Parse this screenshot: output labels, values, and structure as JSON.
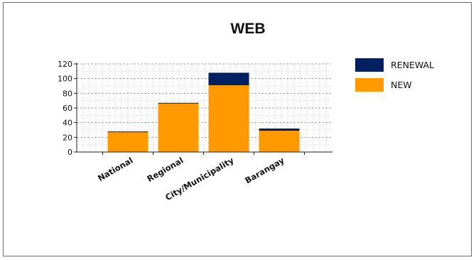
{
  "chart_data": {
    "type": "bar",
    "stacked": true,
    "title": "WEB",
    "categories": [
      "National",
      "Regional",
      "City/Municipality",
      "Barangay"
    ],
    "series": [
      {
        "name": "NEW",
        "color": "#ff9900",
        "values": [
          27,
          66,
          91,
          29
        ]
      },
      {
        "name": "RENEWAL",
        "color": "#002060",
        "values": [
          1,
          1,
          17,
          3
        ]
      }
    ],
    "legend": {
      "entries": [
        "RENEWAL",
        "NEW"
      ],
      "placement": "right"
    },
    "ylim": [
      0,
      120
    ],
    "yticks": [
      0,
      20,
      40,
      60,
      80,
      100,
      120
    ],
    "grid": true
  }
}
